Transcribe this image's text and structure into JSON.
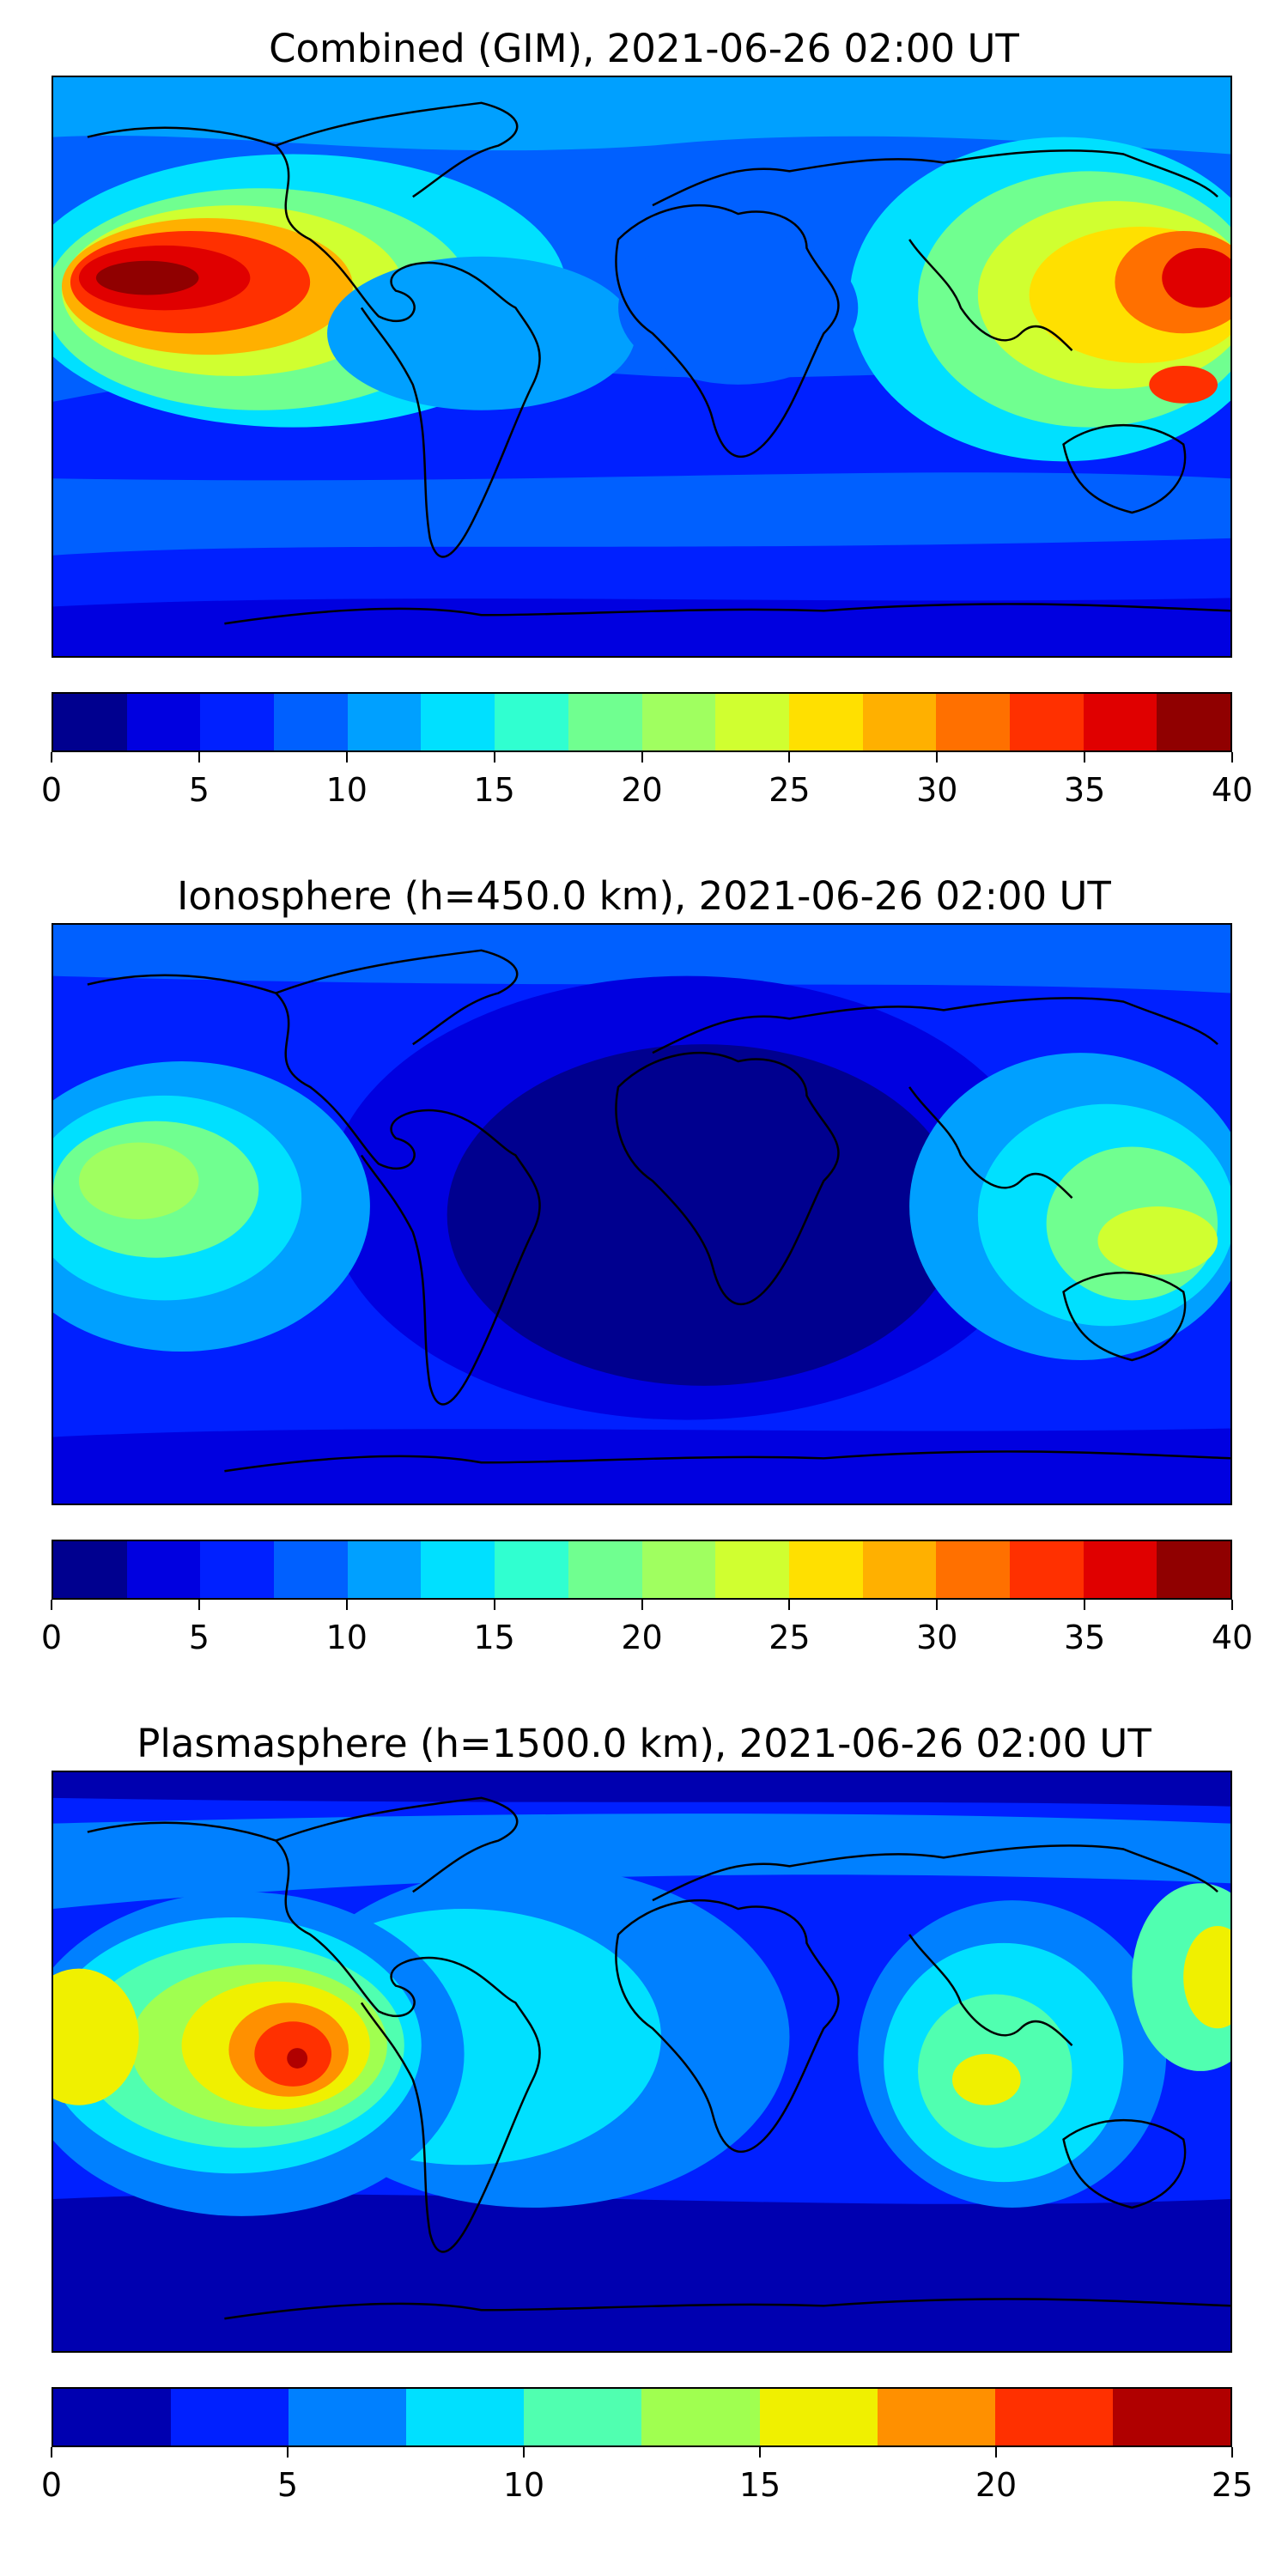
{
  "panels": [
    {
      "title": "Combined (GIM), 2021-06-26 02:00 UT",
      "colorbar": {
        "colors": [
          "#00008f",
          "#0000e0",
          "#0020ff",
          "#0060ff",
          "#00a0ff",
          "#00e0ff",
          "#30ffd0",
          "#70ff90",
          "#a0ff60",
          "#d0ff30",
          "#ffe000",
          "#ffb000",
          "#ff7000",
          "#ff3000",
          "#e00000",
          "#900000"
        ],
        "tick_labels": [
          "0",
          "5",
          "10",
          "15",
          "20",
          "25",
          "30",
          "35",
          "40"
        ]
      }
    },
    {
      "title": "Ionosphere  (h=450.0 km), 2021-06-26 02:00 UT",
      "colorbar": {
        "colors": [
          "#00008f",
          "#0000e0",
          "#0020ff",
          "#0060ff",
          "#00a0ff",
          "#00e0ff",
          "#30ffd0",
          "#70ff90",
          "#a0ff60",
          "#d0ff30",
          "#ffe000",
          "#ffb000",
          "#ff7000",
          "#ff3000",
          "#e00000",
          "#900000"
        ],
        "tick_labels": [
          "0",
          "5",
          "10",
          "15",
          "20",
          "25",
          "30",
          "35",
          "40"
        ]
      }
    },
    {
      "title": "Plasmasphere (h=1500.0 km), 2021-06-26 02:00 UT",
      "colorbar": {
        "colors": [
          "#0000b0",
          "#0020ff",
          "#0080ff",
          "#00e0ff",
          "#50ffb0",
          "#a0ff50",
          "#f0f000",
          "#ff9000",
          "#ff3000",
          "#b00000"
        ],
        "tick_labels": [
          "0",
          "5",
          "10",
          "15",
          "20",
          "25"
        ]
      }
    }
  ]
}
